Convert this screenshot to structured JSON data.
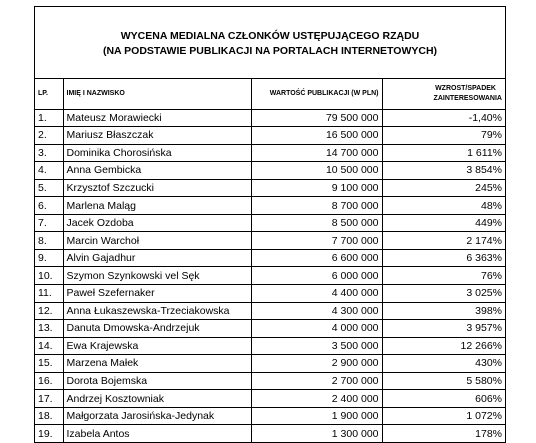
{
  "title": {
    "line1": "WYCENA MEDIALNA CZŁONKÓW USTĘPUJĄCEGO RZĄDU",
    "line2": "(NA PODSTAWIE PUBLIKACJI NA PORTALACH INTERNETOWYCH)"
  },
  "headers": {
    "lp": "LP.",
    "name": "IMIĘ I NAZWISKO",
    "value": "WARTOŚĆ PUBLIKACJI (W PLN)",
    "growth_line1": "WZROST/SPADEK",
    "growth_line2": "ZAINTERESOWANIA"
  },
  "rows": [
    {
      "lp": "1.",
      "name": "Mateusz Morawiecki",
      "value": "79 500 000",
      "growth": "-1,40%"
    },
    {
      "lp": "2.",
      "name": "Mariusz Błaszczak",
      "value": "16 500 000",
      "growth": "79%"
    },
    {
      "lp": "3.",
      "name": "Dominika Chorosińska",
      "value": "14 700 000",
      "growth": "1 611%"
    },
    {
      "lp": "4.",
      "name": "Anna Gembicka",
      "value": "10 500 000",
      "growth": "3 854%"
    },
    {
      "lp": "5.",
      "name": "Krzysztof Szczucki",
      "value": "9 100 000",
      "growth": "245%"
    },
    {
      "lp": "6.",
      "name": "Marlena Maląg",
      "value": "8 700 000",
      "growth": "48%"
    },
    {
      "lp": "7.",
      "name": "Jacek Ozdoba",
      "value": "8 500 000",
      "growth": "449%"
    },
    {
      "lp": "8.",
      "name": "Marcin Warchoł",
      "value": "7 700 000",
      "growth": "2 174%"
    },
    {
      "lp": "9.",
      "name": "Alvin Gajadhur",
      "value": "6 600 000",
      "growth": "6 363%"
    },
    {
      "lp": "10.",
      "name": "Szymon Szynkowski vel Sęk",
      "value": "6 000 000",
      "growth": "76%"
    },
    {
      "lp": "11.",
      "name": "Paweł Szefernaker",
      "value": "4 400 000",
      "growth": "3 025%"
    },
    {
      "lp": "12.",
      "name": "Anna Łukaszewska-Trzeciakowska",
      "value": "4 300 000",
      "growth": "398%"
    },
    {
      "lp": "13.",
      "name": "Danuta Dmowska-Andrzejuk",
      "value": "4 000 000",
      "growth": "3 957%"
    },
    {
      "lp": "14.",
      "name": "Ewa Krajewska",
      "value": "3 500 000",
      "growth": "12 266%"
    },
    {
      "lp": "15.",
      "name": "Marzena Małek",
      "value": "2 900 000",
      "growth": "430%"
    },
    {
      "lp": "16.",
      "name": "Dorota Bojemska",
      "value": "2 700 000",
      "growth": "5 580%"
    },
    {
      "lp": "17.",
      "name": "Andrzej Kosztowniak",
      "value": "2 400 000",
      "growth": "606%"
    },
    {
      "lp": "18.",
      "name": "Małgorzata Jarosińska-Jedynak",
      "value": "1 900 000",
      "growth": "1 072%"
    },
    {
      "lp": "19.",
      "name": "Izabela Antos",
      "value": "1 300 000",
      "growth": "178%"
    }
  ]
}
